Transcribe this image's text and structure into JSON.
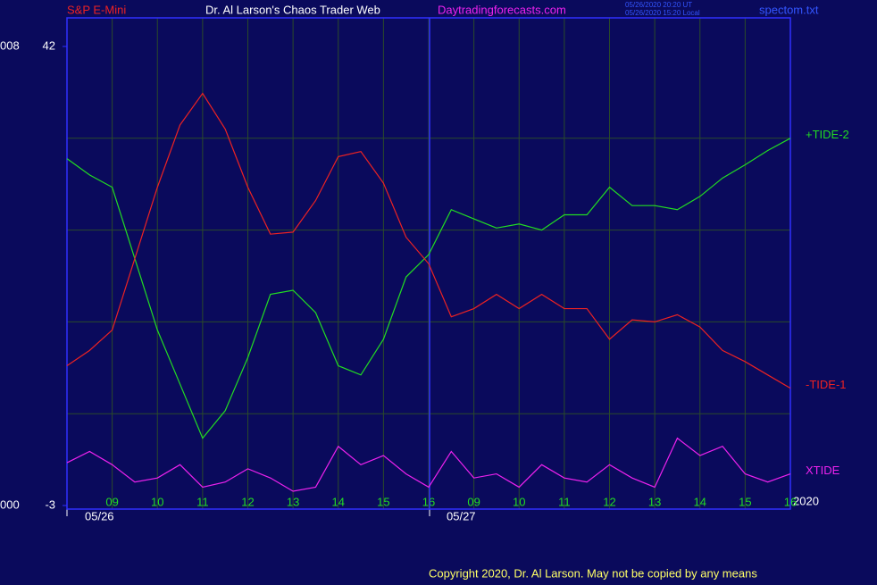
{
  "chart_data": {
    "type": "line",
    "header": {
      "symbol": "S&P E-Mini",
      "title": "Dr. Al Larson's Chaos Trader Web",
      "site": "Daytradingforecasts.com",
      "time_ut": "05/26/2020 20:20 UT",
      "time_local": "05/26/2020 15:20 Local",
      "file": "spectom.txt"
    },
    "left_labels": [
      "008",
      "000"
    ],
    "dates": [
      "05/26",
      "05/27"
    ],
    "year": "2020",
    "copyright": "Copyright 2020, Dr. Al Larson. May not be copied by any means",
    "x": [
      0,
      0.5,
      1,
      1.5,
      2,
      2.5,
      3,
      3.5,
      4,
      4.5,
      5,
      5.5,
      6,
      6.5,
      7,
      7.5,
      8,
      8.5,
      9,
      9.5,
      10,
      10.5,
      11,
      11.5,
      12,
      12.5,
      13,
      13.5,
      14,
      14.5,
      15,
      15.5,
      16
    ],
    "xlim": [
      0,
      16
    ],
    "xticks": [
      {
        "value": 1,
        "label": "09"
      },
      {
        "value": 2,
        "label": "10"
      },
      {
        "value": 3,
        "label": "11"
      },
      {
        "value": 4,
        "label": "12"
      },
      {
        "value": 5,
        "label": "13"
      },
      {
        "value": 6,
        "label": "14"
      },
      {
        "value": 7,
        "label": "15"
      },
      {
        "value": 8,
        "label": "16"
      },
      {
        "value": 9,
        "label": "09"
      },
      {
        "value": 10,
        "label": "10"
      },
      {
        "value": 11,
        "label": "11"
      },
      {
        "value": 12,
        "label": "12"
      },
      {
        "value": 13,
        "label": "13"
      },
      {
        "value": 14,
        "label": "14"
      },
      {
        "value": 15,
        "label": "15"
      },
      {
        "value": 16,
        "label": "16"
      }
    ],
    "ylim": [
      -3,
      42
    ],
    "yticks": [
      42,
      -3
    ],
    "grid": true,
    "series": [
      {
        "name": "+TIDE-2",
        "color": "#22dd22",
        "values": [
          31.0,
          29.4,
          28.2,
          21.2,
          14.2,
          8.9,
          3.6,
          6.3,
          11.5,
          17.7,
          18.1,
          15.9,
          10.7,
          9.8,
          13.3,
          19.4,
          21.6,
          26.0,
          25.1,
          24.2,
          24.6,
          24.0,
          25.5,
          25.5,
          28.2,
          26.4,
          26.4,
          26.0,
          27.3,
          29.1,
          30.4,
          31.8,
          33.0
        ]
      },
      {
        "name": "-TIDE-1",
        "color": "#ee2222",
        "values": [
          10.7,
          12.2,
          14.2,
          21.2,
          28.2,
          34.3,
          37.4,
          33.9,
          28.2,
          23.6,
          23.8,
          26.9,
          31.2,
          31.7,
          28.6,
          23.3,
          20.7,
          15.5,
          16.3,
          17.7,
          16.3,
          17.7,
          16.3,
          16.3,
          13.3,
          15.2,
          15.0,
          15.7,
          14.5,
          12.2,
          11.1,
          9.8,
          8.5
        ]
      },
      {
        "name": "XTIDE",
        "color": "#ee22ee",
        "values": [
          1.2,
          2.3,
          1.0,
          -0.7,
          -0.3,
          1.0,
          -1.2,
          -0.7,
          0.6,
          -0.3,
          -1.6,
          -1.2,
          2.8,
          1.0,
          1.9,
          0.1,
          -1.2,
          2.3,
          -0.3,
          0.1,
          -1.2,
          1.0,
          -0.3,
          -0.7,
          1.0,
          -0.3,
          -1.2,
          3.6,
          1.9,
          2.8,
          0.1,
          -0.7,
          0.1
        ]
      }
    ]
  }
}
